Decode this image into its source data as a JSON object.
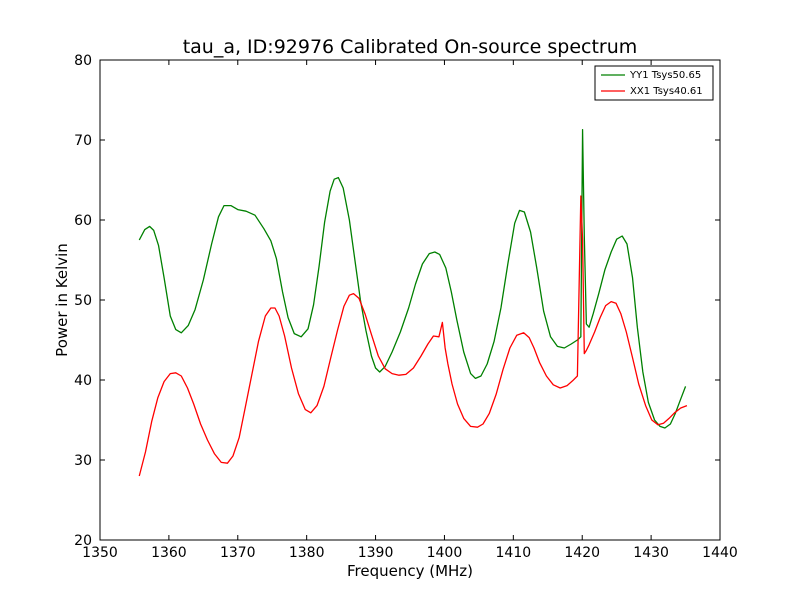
{
  "chart_data": {
    "type": "line",
    "title": "tau_a, ID:92976 Calibrated On-source spectrum",
    "xlabel": "Frequency (MHz)",
    "ylabel": "Power in Kelvin",
    "xlim": [
      1350,
      1440
    ],
    "ylim": [
      20,
      80
    ],
    "xticks": [
      1350,
      1360,
      1370,
      1380,
      1390,
      1400,
      1410,
      1420,
      1430,
      1440
    ],
    "yticks": [
      20,
      30,
      40,
      50,
      60,
      70,
      80
    ],
    "legend_position": "top-right",
    "series": [
      {
        "name": "YY1 Tsys50.65",
        "color": "#008000",
        "x": [
          1355.7,
          1356.5,
          1357.2,
          1357.8,
          1358.5,
          1359.3,
          1360.2,
          1361.0,
          1361.8,
          1362.8,
          1363.8,
          1365.0,
          1366.2,
          1367.2,
          1368.0,
          1369.0,
          1370.0,
          1371.2,
          1372.5,
          1373.8,
          1374.8,
          1375.6,
          1376.5,
          1377.3,
          1378.2,
          1379.2,
          1380.2,
          1381.0,
          1381.8,
          1382.6,
          1383.4,
          1384.0,
          1384.6,
          1385.3,
          1386.2,
          1387.0,
          1387.8,
          1388.6,
          1389.4,
          1390.0,
          1390.6,
          1391.4,
          1392.4,
          1393.6,
          1394.8,
          1395.8,
          1396.8,
          1397.8,
          1398.6,
          1399.3,
          1400.2,
          1401.0,
          1401.8,
          1402.8,
          1403.8,
          1404.5,
          1405.3,
          1406.2,
          1407.2,
          1408.2,
          1409.2,
          1410.2,
          1410.9,
          1411.6,
          1412.5,
          1413.4,
          1414.4,
          1415.4,
          1416.4,
          1417.4,
          1418.4,
          1419.3,
          1419.8,
          1420.05,
          1420.3,
          1420.6,
          1421.0,
          1421.6,
          1422.4,
          1423.3,
          1424.2,
          1425.0,
          1425.8,
          1426.5,
          1427.3,
          1428.0,
          1428.8,
          1429.6,
          1430.5,
          1431.3,
          1432.0,
          1432.8,
          1433.5,
          1434.2,
          1435.0
        ],
        "values": [
          57.5,
          58.8,
          59.2,
          58.7,
          56.8,
          52.8,
          48.0,
          46.3,
          45.9,
          46.8,
          48.8,
          52.5,
          57.0,
          60.4,
          61.8,
          61.8,
          61.3,
          61.1,
          60.6,
          58.9,
          57.4,
          55.2,
          51.0,
          47.8,
          45.8,
          45.4,
          46.4,
          49.4,
          54.2,
          59.7,
          63.6,
          65.1,
          65.3,
          64.0,
          60.0,
          55.0,
          50.0,
          46.2,
          43.0,
          41.5,
          41.0,
          41.7,
          43.5,
          46.0,
          49.0,
          52.0,
          54.5,
          55.8,
          56.0,
          55.7,
          54.0,
          51.0,
          47.5,
          43.5,
          40.8,
          40.2,
          40.5,
          42.0,
          44.8,
          49.0,
          54.5,
          59.6,
          61.2,
          61.0,
          58.5,
          54.0,
          48.6,
          45.4,
          44.2,
          44.0,
          44.5,
          45.0,
          45.4,
          71.3,
          58.0,
          47.0,
          46.6,
          48.3,
          50.8,
          53.8,
          56.0,
          57.6,
          58.0,
          57.0,
          52.8,
          46.6,
          41.0,
          37.2,
          35.0,
          34.2,
          34.0,
          34.5,
          35.8,
          37.4,
          39.2
        ]
      },
      {
        "name": "XX1 Tsys40.61",
        "color": "#ff0000",
        "x": [
          1355.7,
          1356.6,
          1357.5,
          1358.4,
          1359.3,
          1360.2,
          1361.0,
          1361.8,
          1362.7,
          1363.6,
          1364.6,
          1365.6,
          1366.6,
          1367.6,
          1368.5,
          1369.3,
          1370.2,
          1371.0,
          1372.0,
          1373.0,
          1374.0,
          1374.8,
          1375.4,
          1376.0,
          1376.8,
          1377.8,
          1378.8,
          1379.8,
          1380.6,
          1381.5,
          1382.5,
          1383.5,
          1384.5,
          1385.4,
          1386.2,
          1386.8,
          1387.6,
          1388.5,
          1389.4,
          1390.4,
          1391.4,
          1392.4,
          1393.4,
          1394.4,
          1395.5,
          1396.6,
          1397.6,
          1398.4,
          1399.2,
          1399.7,
          1400.1,
          1400.5,
          1401.1,
          1401.9,
          1402.8,
          1403.8,
          1404.8,
          1405.6,
          1406.5,
          1407.5,
          1408.5,
          1409.5,
          1410.5,
          1411.5,
          1412.3,
          1413.0,
          1413.8,
          1414.8,
          1415.8,
          1416.8,
          1417.8,
          1418.6,
          1419.3,
          1419.8,
          1420.05,
          1420.3,
          1420.6,
          1421.0,
          1421.8,
          1422.6,
          1423.4,
          1424.2,
          1424.9,
          1425.6,
          1426.4,
          1427.3,
          1428.2,
          1429.2,
          1430.1,
          1431.0,
          1431.8,
          1432.6,
          1433.4,
          1434.3,
          1435.2
        ],
        "values": [
          28.0,
          31.0,
          34.8,
          37.8,
          39.8,
          40.8,
          40.9,
          40.5,
          39.0,
          37.0,
          34.5,
          32.5,
          30.8,
          29.7,
          29.6,
          30.5,
          32.8,
          36.2,
          40.5,
          44.8,
          48.0,
          49.0,
          49.0,
          48.0,
          45.5,
          41.5,
          38.3,
          36.3,
          35.9,
          36.8,
          39.2,
          42.8,
          46.3,
          49.2,
          50.6,
          50.8,
          50.2,
          48.2,
          45.7,
          43.0,
          41.4,
          40.8,
          40.6,
          40.7,
          41.5,
          43.0,
          44.5,
          45.5,
          45.4,
          47.2,
          44.0,
          42.0,
          39.5,
          37.0,
          35.2,
          34.2,
          34.1,
          34.5,
          35.8,
          38.2,
          41.3,
          44.0,
          45.6,
          45.9,
          45.3,
          44.0,
          42.2,
          40.5,
          39.4,
          39.0,
          39.3,
          39.9,
          40.5,
          63.0,
          57.5,
          43.3,
          43.7,
          44.4,
          46.0,
          47.8,
          49.3,
          49.8,
          49.6,
          48.3,
          46.0,
          42.8,
          39.5,
          36.8,
          35.0,
          34.4,
          34.6,
          35.2,
          35.9,
          36.5,
          36.8
        ]
      }
    ]
  }
}
